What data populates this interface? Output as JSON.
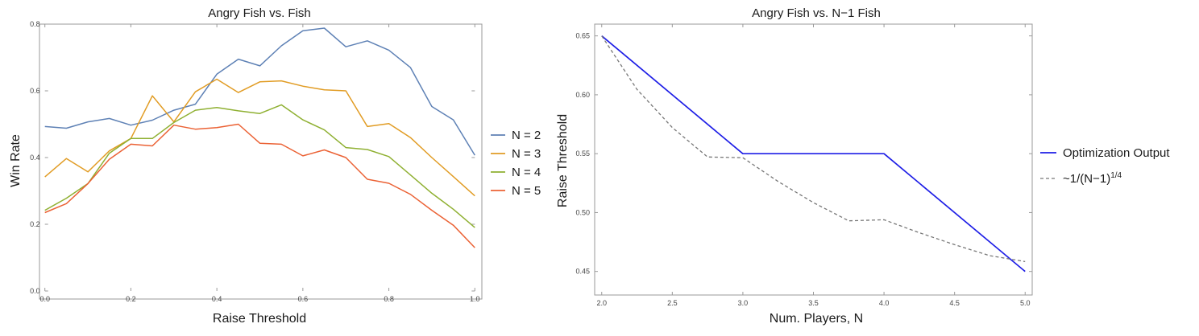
{
  "chart_data": [
    {
      "type": "line",
      "title": "Angry Fish vs. Fish",
      "xlabel": "Raise Threshold",
      "ylabel": "Win Rate",
      "xlim": [
        0,
        1
      ],
      "ylim": [
        0,
        0.8
      ],
      "xticks": [
        "0.0",
        "0.2",
        "0.4",
        "0.6",
        "0.8",
        "1.0"
      ],
      "yticks": [
        "0.0",
        "0.2",
        "0.4",
        "0.6",
        "0.8"
      ],
      "grid": false,
      "legend_position": "right",
      "x": [
        0.0,
        0.05,
        0.1,
        0.15,
        0.2,
        0.25,
        0.3,
        0.35,
        0.4,
        0.45,
        0.5,
        0.55,
        0.6,
        0.65,
        0.7,
        0.75,
        0.8,
        0.85,
        0.9,
        0.95,
        1.0
      ],
      "series": [
        {
          "name": "N = 2",
          "color": "#5e81b5",
          "values": [
            0.493,
            0.488,
            0.507,
            0.517,
            0.497,
            0.512,
            0.542,
            0.56,
            0.65,
            0.695,
            0.675,
            0.735,
            0.78,
            0.788,
            0.732,
            0.75,
            0.722,
            0.67,
            0.553,
            0.513,
            0.407
          ]
        },
        {
          "name": "N = 3",
          "color": "#e19c24",
          "values": [
            0.342,
            0.397,
            0.357,
            0.42,
            0.457,
            0.585,
            0.507,
            0.597,
            0.635,
            0.595,
            0.627,
            0.63,
            0.614,
            0.603,
            0.6,
            0.493,
            0.502,
            0.46,
            0.4,
            0.343,
            0.285
          ]
        },
        {
          "name": "N = 4",
          "color": "#8fb032",
          "values": [
            0.242,
            0.278,
            0.322,
            0.413,
            0.457,
            0.457,
            0.505,
            0.542,
            0.55,
            0.54,
            0.532,
            0.558,
            0.513,
            0.483,
            0.43,
            0.424,
            0.403,
            0.348,
            0.293,
            0.245,
            0.19
          ]
        },
        {
          "name": "N = 5",
          "color": "#eb6235",
          "values": [
            0.235,
            0.262,
            0.322,
            0.395,
            0.44,
            0.435,
            0.497,
            0.485,
            0.49,
            0.5,
            0.443,
            0.44,
            0.405,
            0.423,
            0.4,
            0.335,
            0.323,
            0.29,
            0.242,
            0.197,
            0.13
          ]
        }
      ]
    },
    {
      "type": "line",
      "title": "Angry Fish vs. N−1 Fish",
      "xlabel": "Num. Players, N",
      "ylabel": "Raise Threshold",
      "xlim": [
        1.95,
        5.05
      ],
      "ylim": [
        0.43,
        0.66
      ],
      "xticks": [
        "2.0",
        "2.5",
        "3.0",
        "3.5",
        "4.0",
        "4.5",
        "5.0"
      ],
      "yticks": [
        "0.45",
        "0.50",
        "0.55",
        "0.60",
        "0.65"
      ],
      "grid": false,
      "legend_position": "right",
      "series": [
        {
          "name": "Optimization Output",
          "color": "#1e1ee6",
          "style": "solid",
          "x": [
            2,
            3,
            4,
            5
          ],
          "values": [
            0.65,
            0.55,
            0.55,
            0.45
          ]
        },
        {
          "name": "~1/(N−1)",
          "name_sup": "1/4",
          "color": "#777777",
          "style": "dashed",
          "x": [
            2,
            2.25,
            2.5,
            2.75,
            3,
            3.25,
            3.5,
            3.75,
            4,
            4.25,
            4.5,
            4.75,
            5
          ],
          "values": [
            0.65,
            0.6046,
            0.5722,
            0.5472,
            0.5466,
            0.5264,
            0.5084,
            0.493,
            0.4939,
            0.4829,
            0.4727,
            0.4634,
            0.4584
          ]
        }
      ]
    }
  ]
}
